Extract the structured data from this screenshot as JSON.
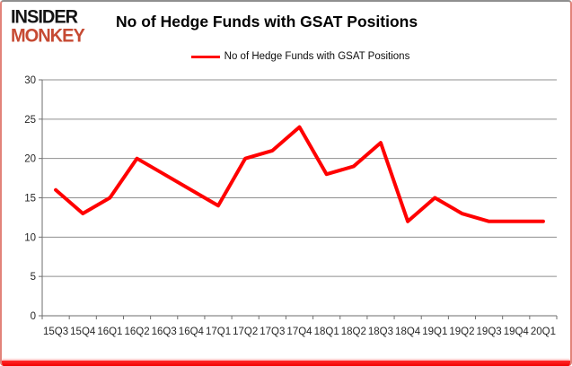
{
  "brand": {
    "line1": "INSIDER",
    "line2": "MONKEY",
    "line1_color": "#141414",
    "line2_color": "#c64a33"
  },
  "header": {
    "title": "No of Hedge Funds with GSAT Positions"
  },
  "legend": {
    "label": "No of Hedge Funds with GSAT Positions",
    "line_color": "#ff0000"
  },
  "chart_data": {
    "type": "line",
    "title": "No of Hedge Funds with GSAT Positions",
    "categories": [
      "15Q3",
      "15Q4",
      "16Q1",
      "16Q2",
      "16Q3",
      "16Q4",
      "17Q1",
      "17Q2",
      "17Q3",
      "17Q4",
      "18Q1",
      "18Q2",
      "18Q3",
      "18Q4",
      "19Q1",
      "19Q2",
      "19Q3",
      "19Q4",
      "20Q1"
    ],
    "series": [
      {
        "name": "No of Hedge Funds with GSAT Positions",
        "color": "#ff0000",
        "values": [
          16,
          13,
          15,
          20,
          18,
          16,
          14,
          20,
          21,
          24,
          18,
          19,
          22,
          12,
          15,
          13,
          12,
          12,
          12
        ]
      }
    ],
    "xlabel": "",
    "ylabel": "",
    "ylim": [
      0,
      30
    ],
    "yticks": [
      0,
      5,
      10,
      15,
      20,
      25,
      30
    ],
    "grid": true,
    "legend_position": "top-center"
  }
}
